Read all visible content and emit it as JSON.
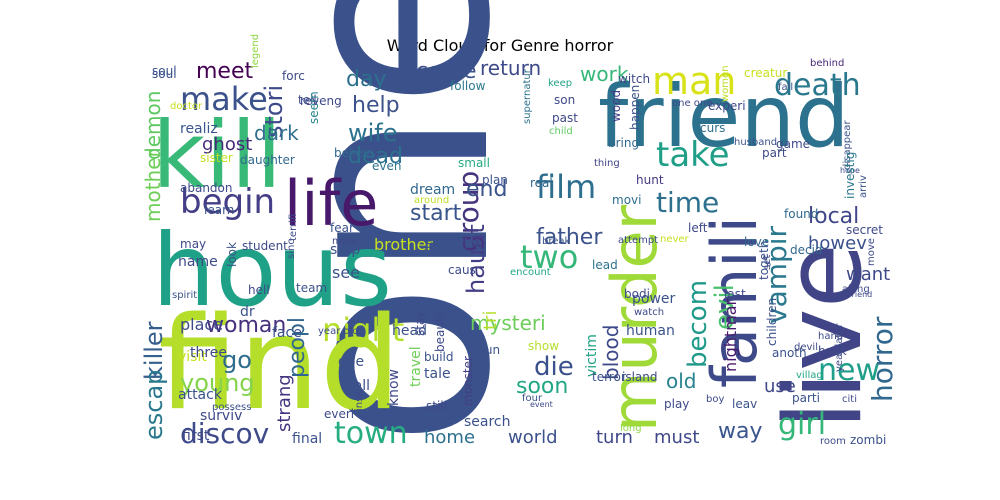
{
  "title": "Word Cloud for Genre horror",
  "words": [
    {
      "text": "one",
      "color": "#3b518b"
    },
    {
      "text": "find",
      "color": "#b5de2b"
    },
    {
      "text": "hous",
      "color": "#1fa187"
    },
    {
      "text": "kill",
      "color": "#38b977"
    },
    {
      "text": "friend",
      "color": "#2c728e"
    },
    {
      "text": "live",
      "color": "#414487"
    },
    {
      "text": "famili",
      "color": "#3e4989"
    },
    {
      "text": "murder",
      "color": "#a0da39"
    },
    {
      "text": "life",
      "color": "#48186a"
    },
    {
      "text": "begin",
      "color": "#433e85"
    },
    {
      "text": "man",
      "color": "#d8e219"
    },
    {
      "text": "death",
      "color": "#2a788e"
    },
    {
      "text": "take",
      "color": "#1f9f88"
    },
    {
      "text": "make",
      "color": "#3b528b"
    },
    {
      "text": "film",
      "color": "#2e6e8e"
    },
    {
      "text": "two",
      "color": "#35b779"
    },
    {
      "text": "night",
      "color": "#b5de2b"
    },
    {
      "text": "new",
      "color": "#1f9e89"
    },
    {
      "text": "evil",
      "color": "#4ac16d"
    },
    {
      "text": "time",
      "color": "#2d708e"
    },
    {
      "text": "vampir",
      "color": "#2a788e"
    },
    {
      "text": "group",
      "color": "#46337e"
    },
    {
      "text": "town",
      "color": "#26ad81"
    },
    {
      "text": "discov",
      "color": "#3e4a89"
    },
    {
      "text": "girl",
      "color": "#35b779"
    },
    {
      "text": "horror",
      "color": "#31688e"
    },
    {
      "text": "becom",
      "color": "#1f9a8a"
    },
    {
      "text": "killer",
      "color": "#355f8d"
    },
    {
      "text": "escap",
      "color": "#2a788e"
    },
    {
      "text": "haunt",
      "color": "#433e85"
    },
    {
      "text": "father",
      "color": "#3b528b"
    },
    {
      "text": "wife",
      "color": "#2c728e"
    },
    {
      "text": "dead",
      "color": "#2d708e"
    },
    {
      "text": "woman",
      "color": "#46307e"
    },
    {
      "text": "go",
      "color": "#2e6d8e"
    },
    {
      "text": "young",
      "color": "#84d44b"
    },
    {
      "text": "die",
      "color": "#3b518b"
    },
    {
      "text": "soon",
      "color": "#22a785"
    },
    {
      "text": "help",
      "color": "#3b528b"
    },
    {
      "text": "meet",
      "color": "#440154"
    },
    {
      "text": "day",
      "color": "#2d708e"
    },
    {
      "text": "come",
      "color": "#3b528b"
    },
    {
      "text": "return",
      "color": "#3e4989"
    },
    {
      "text": "work",
      "color": "#35b779"
    },
    {
      "text": "stori",
      "color": "#3e4a89"
    },
    {
      "text": "dark",
      "color": "#2e6e8e"
    },
    {
      "text": "ghost",
      "color": "#472c7a"
    },
    {
      "text": "start",
      "color": "#39558c"
    },
    {
      "text": "end",
      "color": "#3a538b"
    },
    {
      "text": "mysteri",
      "color": "#6ccd5a"
    },
    {
      "text": "local",
      "color": "#3f4788"
    },
    {
      "text": "old",
      "color": "#26828e"
    },
    {
      "text": "howev",
      "color": "#3b518b"
    },
    {
      "text": "want",
      "color": "#3e4989"
    },
    {
      "text": "peopl",
      "color": "#31678e"
    },
    {
      "text": "strang",
      "color": "#453581"
    },
    {
      "text": "blood",
      "color": "#3e4989"
    },
    {
      "text": "tri",
      "color": "#b5de2b"
    },
    {
      "text": "world",
      "color": "#3b528b"
    },
    {
      "text": "home",
      "color": "#2d708e"
    },
    {
      "text": "turn",
      "color": "#3f4889"
    },
    {
      "text": "must",
      "color": "#3f4889"
    },
    {
      "text": "way",
      "color": "#3a548c"
    },
    {
      "text": "use",
      "color": "#3f4889"
    },
    {
      "text": "nightmar",
      "color": "#481b6d"
    },
    {
      "text": "demon",
      "color": "#5ec962"
    },
    {
      "text": "mother",
      "color": "#6ece58"
    },
    {
      "text": "abandon",
      "color": "#3e4989"
    },
    {
      "text": "realiz",
      "color": "#39558c"
    },
    {
      "text": "sister",
      "color": "#c2df23"
    },
    {
      "text": "daughter",
      "color": "#31688e"
    },
    {
      "text": "soul",
      "color": "#3b528b"
    },
    {
      "text": "legend",
      "color": "#8fd744"
    },
    {
      "text": "forc",
      "color": "#3e4989"
    },
    {
      "text": "tell",
      "color": "#3e4989"
    },
    {
      "text": "seem",
      "color": "#26828e"
    },
    {
      "text": "believ",
      "color": "#31688e"
    },
    {
      "text": "even",
      "color": "#2c728e"
    },
    {
      "text": "dream",
      "color": "#31688e"
    },
    {
      "text": "around",
      "color": "#bddf26"
    },
    {
      "text": "follow",
      "color": "#2a788e"
    },
    {
      "text": "small",
      "color": "#25ac82"
    },
    {
      "text": "plan",
      "color": "#3b528b"
    },
    {
      "text": "real",
      "color": "#31688e"
    },
    {
      "text": "keep",
      "color": "#20a386"
    },
    {
      "text": "son",
      "color": "#3e4989"
    },
    {
      "text": "past",
      "color": "#3e4989"
    },
    {
      "text": "supernatur",
      "color": "#2c728e"
    },
    {
      "text": "child",
      "color": "#5ec962"
    },
    {
      "text": "bring",
      "color": "#31688e"
    },
    {
      "text": "thing",
      "color": "#414487"
    },
    {
      "text": "witch",
      "color": "#3f4788"
    },
    {
      "text": "wood",
      "color": "#433e85"
    },
    {
      "text": "happen",
      "color": "#3b528b"
    },
    {
      "text": "creatur",
      "color": "#c8e020"
    },
    {
      "text": "one one",
      "color": "#3e4989"
    },
    {
      "text": "behind",
      "color": "#482878"
    },
    {
      "text": "fall",
      "color": "#3b528b"
    },
    {
      "text": "experi",
      "color": "#3f4788"
    },
    {
      "text": "curs",
      "color": "#2e6e8e"
    },
    {
      "text": "husband",
      "color": "#3b528b"
    },
    {
      "text": "women",
      "color": "#bddf26"
    },
    {
      "text": "part",
      "color": "#3e4989"
    },
    {
      "text": "game",
      "color": "#3e4989"
    },
    {
      "text": "disappear",
      "color": "#3b528b"
    },
    {
      "text": "hope",
      "color": "#3e4989"
    },
    {
      "text": "arriv",
      "color": "#3b528b"
    },
    {
      "text": "investig",
      "color": "#2a788e"
    },
    {
      "text": "hunt",
      "color": "#453781"
    },
    {
      "text": "movi",
      "color": "#2e6e8e"
    },
    {
      "text": "found",
      "color": "#31688e"
    },
    {
      "text": "secret",
      "color": "#3e4989"
    },
    {
      "text": "decid",
      "color": "#31688e"
    },
    {
      "text": "love",
      "color": "#31688e"
    },
    {
      "text": "left",
      "color": "#3e4989"
    },
    {
      "text": "break",
      "color": "#3b528b"
    },
    {
      "text": "attempt",
      "color": "#3e4989"
    },
    {
      "text": "never",
      "color": "#c8e020"
    },
    {
      "text": "encount",
      "color": "#22a785"
    },
    {
      "text": "lead",
      "color": "#2c728e"
    },
    {
      "text": "last",
      "color": "#3e4989"
    },
    {
      "text": "togeth",
      "color": "#3b528b"
    },
    {
      "text": "set",
      "color": "#3e4989"
    },
    {
      "text": "move",
      "color": "#3e4989"
    },
    {
      "text": "along",
      "color": "#3e4989"
    },
    {
      "text": "girlfriend",
      "color": "#3e4989"
    },
    {
      "text": "power",
      "color": "#3b528b"
    },
    {
      "text": "watch",
      "color": "#3e4989"
    },
    {
      "text": "human",
      "color": "#3b528b"
    },
    {
      "text": "bodi",
      "color": "#3e4989"
    },
    {
      "text": "children",
      "color": "#3b528b"
    },
    {
      "text": "anoth",
      "color": "#3b528b"
    },
    {
      "text": "back",
      "color": "#3e4989"
    },
    {
      "text": "hand",
      "color": "#3e4989"
    },
    {
      "text": "devil",
      "color": "#3e4989"
    },
    {
      "text": "villag",
      "color": "#22a785"
    },
    {
      "text": "year later",
      "color": "#3e4989"
    },
    {
      "text": "parti",
      "color": "#3b528b"
    },
    {
      "text": "citi",
      "color": "#3e4989"
    },
    {
      "text": "leav",
      "color": "#3b528b"
    },
    {
      "text": "play",
      "color": "#3e4989"
    },
    {
      "text": "boy",
      "color": "#3e4989"
    },
    {
      "text": "zombi",
      "color": "#3b528b"
    },
    {
      "text": "room",
      "color": "#3e4989"
    },
    {
      "text": "island",
      "color": "#3e4989"
    },
    {
      "text": "long",
      "color": "#8fd744"
    },
    {
      "text": "victim",
      "color": "#20a386"
    },
    {
      "text": "terror",
      "color": "#3b528b"
    },
    {
      "text": "show",
      "color": "#b5de2b"
    },
    {
      "text": "event",
      "color": "#3e4989"
    },
    {
      "text": "four",
      "color": "#3b528b"
    },
    {
      "text": "still",
      "color": "#3e4989"
    },
    {
      "text": "soul",
      "color": "#3b528b"
    },
    {
      "text": "search",
      "color": "#3b528b"
    },
    {
      "text": "beauti",
      "color": "#3e4989"
    },
    {
      "text": "build",
      "color": "#3b528b"
    },
    {
      "text": "caus",
      "color": "#3e4989"
    },
    {
      "text": "travel",
      "color": "#6ece58"
    },
    {
      "text": "monster",
      "color": "#433e85"
    },
    {
      "text": "run",
      "color": "#3b528b"
    },
    {
      "text": "stay",
      "color": "#3e4989"
    },
    {
      "text": "tale",
      "color": "#3b528b"
    },
    {
      "text": "head",
      "color": "#3b528b"
    },
    {
      "text": "know",
      "color": "#3e4989"
    },
    {
      "text": "insid",
      "color": "#3e4989"
    },
    {
      "text": "call",
      "color": "#3b528b"
    },
    {
      "text": "goe",
      "color": "#3b528b"
    },
    {
      "text": "year old",
      "color": "#3e4989"
    },
    {
      "text": "team",
      "color": "#3b528b"
    },
    {
      "text": "brother",
      "color": "#c8e020"
    },
    {
      "text": "someth",
      "color": "#3b528b"
    },
    {
      "text": "terrifi",
      "color": "#3e4989"
    },
    {
      "text": "mani",
      "color": "#3e4989"
    },
    {
      "text": "fear",
      "color": "#3b528b"
    },
    {
      "text": "stop",
      "color": "#3b528b"
    },
    {
      "text": "see",
      "color": "#3b528b"
    },
    {
      "text": "everi",
      "color": "#3e4989"
    },
    {
      "text": "final",
      "color": "#3b528b"
    },
    {
      "text": "first",
      "color": "#3e4989"
    },
    {
      "text": "attack",
      "color": "#3b528b"
    },
    {
      "text": "surviv",
      "color": "#3e4989"
    },
    {
      "text": "possess",
      "color": "#3b528b"
    },
    {
      "text": "visit",
      "color": "#c8e020"
    },
    {
      "text": "place",
      "color": "#3e4989"
    },
    {
      "text": "dr",
      "color": "#3b528b"
    },
    {
      "text": "three",
      "color": "#3e4989"
    },
    {
      "text": "face",
      "color": "#3b528b"
    },
    {
      "text": "name",
      "color": "#3e4989"
    },
    {
      "text": "spirit",
      "color": "#3b528b"
    },
    {
      "text": "hell",
      "color": "#3e4989"
    },
    {
      "text": "look",
      "color": "#3b528b"
    },
    {
      "text": "student",
      "color": "#3e4989"
    },
    {
      "text": "sinc",
      "color": "#3e4989"
    },
    {
      "text": "may",
      "color": "#3e4989"
    },
    {
      "text": "learn",
      "color": "#3b528b"
    },
    {
      "text": "doctor",
      "color": "#c8e020"
    },
    {
      "text": "reveng",
      "color": "#3e4989"
    },
    {
      "text": "save",
      "color": "#3b528b"
    }
  ]
}
